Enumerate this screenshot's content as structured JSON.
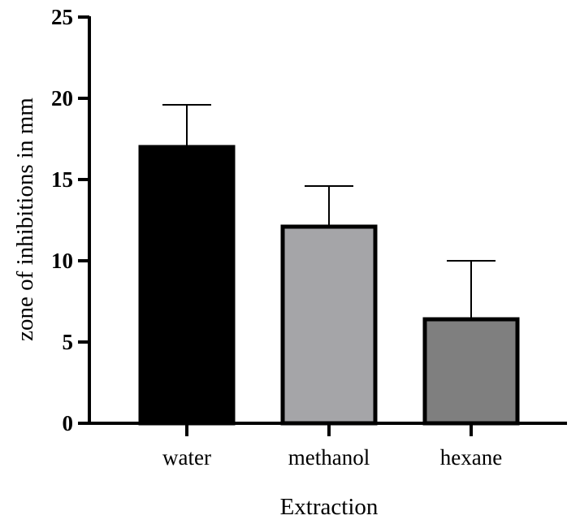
{
  "chart_data": {
    "type": "bar",
    "categories": [
      "water",
      "methanol",
      "hexane"
    ],
    "values": [
      17.0,
      12.1,
      6.4
    ],
    "errors": [
      2.6,
      2.5,
      3.6
    ],
    "colors": [
      "#000000",
      "#a5a5a8",
      "#7f7f7f"
    ],
    "xlabel": "Extraction",
    "ylabel": "zone of inhibitions in mm",
    "ylim": [
      0,
      25
    ],
    "yticks": [
      "0",
      "5",
      "10",
      "15",
      "20",
      "25"
    ],
    "grid": false,
    "legend": "none"
  }
}
